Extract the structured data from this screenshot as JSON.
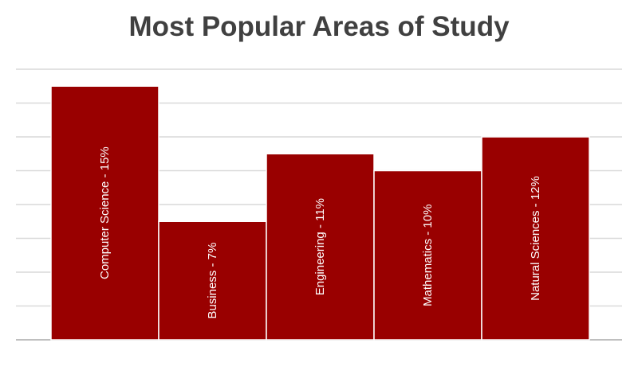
{
  "chart_data": {
    "type": "bar",
    "title": "Most Popular Areas of Study",
    "categories": [
      "Computer Science",
      "Business",
      "Engineering",
      "Mathematics",
      "Natural Sciences"
    ],
    "values": [
      15,
      7,
      11,
      10,
      12
    ],
    "data_labels": [
      "Computer Science - 15%",
      "Business - 7%",
      "Engineering - 11%",
      "Mathematics - 10%",
      "Natural Sciences - 12%"
    ],
    "ylim": [
      0,
      16
    ],
    "grid": true,
    "legend": "none",
    "bar_color": "#990000",
    "xlabel": "",
    "ylabel": ""
  }
}
